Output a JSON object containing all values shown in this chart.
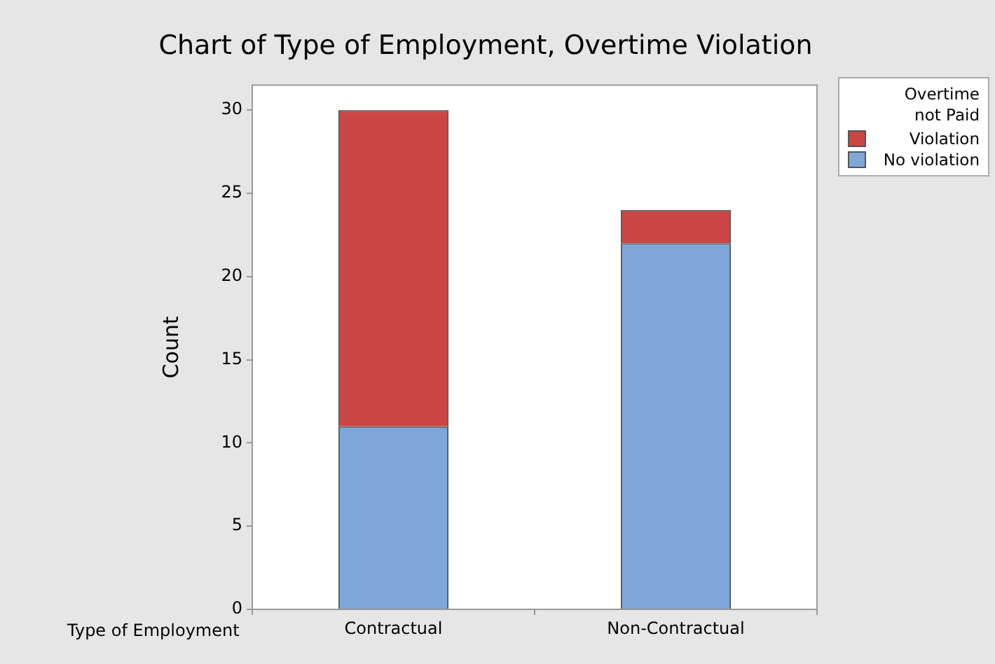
{
  "chart_data": {
    "type": "bar",
    "title": "Chart of Type of Employment, Overtime Violation",
    "xlabel": "Type of Employment",
    "ylabel": "Count",
    "legend_title": "Overtime not Paid",
    "categories": [
      "Contractual",
      "Non-Contractual"
    ],
    "stacked": true,
    "series": [
      {
        "name": "No violation",
        "color": "#7da7d9",
        "values": [
          11,
          22
        ]
      },
      {
        "name": "Violation",
        "color": "#c94644",
        "values": [
          19,
          2
        ]
      }
    ],
    "ylim": [
      0,
      31.5
    ],
    "yticks": [
      0,
      5,
      10,
      15,
      20,
      25,
      30
    ],
    "grid": false,
    "legend": "right"
  }
}
